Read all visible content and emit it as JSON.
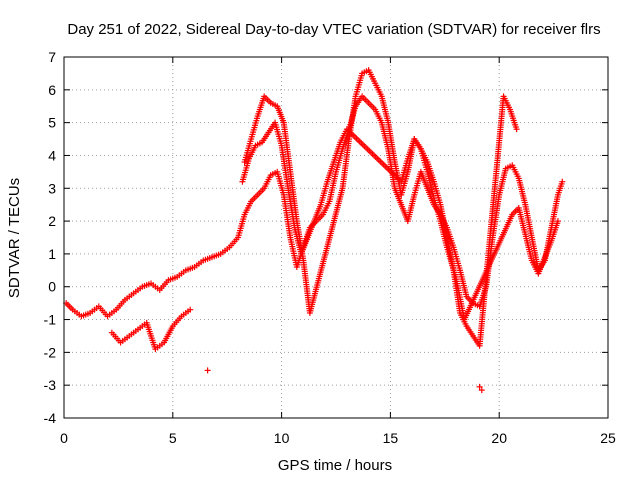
{
  "chart_data": {
    "type": "scatter",
    "title": "Day 251 of 2022, Sidereal Day-to-day VTEC variation (SDTVAR) for receiver flrs",
    "xlabel": "GPS time / hours",
    "ylabel": "SDTVAR / TECUs",
    "xlim": [
      0,
      25
    ],
    "ylim": [
      -4,
      7
    ],
    "xticks": [
      0,
      5,
      10,
      15,
      20,
      25
    ],
    "yticks": [
      -4,
      -3,
      -2,
      -1,
      0,
      1,
      2,
      3,
      4,
      5,
      6,
      7
    ],
    "grid": true,
    "marker": "+",
    "color": "#ff0000",
    "series": [
      {
        "name": "main-track",
        "x": [
          0.1,
          0.4,
          0.8,
          1.2,
          1.6,
          2.0,
          2.4,
          2.8,
          3.2,
          3.6,
          4.0,
          4.4,
          4.8,
          5.2,
          5.6,
          6.0,
          6.4,
          6.8,
          7.2,
          7.6,
          8.0,
          8.3,
          8.6,
          8.9,
          9.2,
          9.5,
          9.8,
          10.1,
          10.4,
          10.7,
          11.0,
          11.3,
          11.6,
          11.9,
          12.2,
          12.5,
          12.8,
          13.1,
          13.4,
          13.7,
          14.0,
          14.3,
          14.6,
          14.9,
          15.2,
          15.5,
          15.8,
          16.1,
          16.4,
          16.7,
          17.0,
          17.3,
          17.6,
          17.9,
          18.2,
          18.5,
          18.8,
          19.1,
          19.4,
          19.7,
          20.0,
          20.3,
          20.6,
          20.9,
          21.2,
          21.5,
          21.8,
          22.1,
          22.4,
          22.7,
          22.9
        ],
        "y": [
          -0.5,
          -0.7,
          -0.9,
          -0.8,
          -0.6,
          -0.9,
          -0.7,
          -0.4,
          -0.2,
          0.0,
          0.1,
          -0.1,
          0.2,
          0.3,
          0.5,
          0.6,
          0.8,
          0.9,
          1.0,
          1.2,
          1.5,
          2.2,
          2.6,
          2.8,
          3.0,
          3.4,
          3.5,
          2.8,
          1.5,
          0.6,
          1.2,
          1.8,
          2.0,
          2.2,
          2.6,
          3.5,
          4.2,
          4.8,
          5.5,
          5.8,
          5.6,
          5.4,
          5.0,
          4.2,
          3.0,
          2.5,
          2.0,
          2.8,
          3.5,
          3.0,
          2.5,
          2.2,
          1.8,
          1.2,
          0.5,
          -0.3,
          -0.5,
          -0.6,
          0.0,
          1.5,
          2.8,
          3.6,
          3.7,
          3.3,
          2.5,
          1.5,
          0.5,
          0.8,
          1.8,
          2.8,
          3.2
        ]
      },
      {
        "name": "upper-track",
        "x": [
          8.3,
          8.6,
          8.9,
          9.2,
          9.5,
          9.8,
          10.1,
          10.4,
          10.7,
          11.0,
          11.3,
          12.8,
          13.1,
          13.4,
          13.7,
          14.0,
          14.3,
          14.6,
          14.9,
          15.2,
          15.5,
          15.8,
          16.1,
          16.4,
          16.7,
          17.0,
          17.3,
          17.6,
          17.9,
          18.2,
          18.5,
          18.8,
          19.1,
          20.2,
          20.5,
          20.8
        ],
        "y": [
          3.8,
          4.5,
          5.2,
          5.8,
          5.6,
          5.5,
          5.0,
          3.5,
          2.0,
          0.8,
          -0.8,
          3.0,
          4.5,
          5.8,
          6.5,
          6.6,
          6.2,
          5.8,
          5.0,
          3.8,
          2.8,
          3.5,
          4.5,
          4.2,
          3.8,
          3.2,
          2.5,
          1.5,
          0.5,
          -0.8,
          -1.2,
          -1.5,
          -1.8,
          5.8,
          5.4,
          4.8
        ]
      },
      {
        "name": "mid-track",
        "x": [
          8.2,
          8.5,
          8.8,
          9.1,
          9.4,
          9.7,
          10.0,
          10.3,
          10.6,
          10.9,
          11.2,
          11.5,
          11.8,
          12.1,
          12.4,
          12.7,
          13.0,
          15.5,
          15.8,
          16.1,
          16.4,
          16.7,
          17.0,
          17.3,
          17.6,
          18.0,
          18.4,
          20.6,
          20.9,
          21.2,
          21.5,
          21.8,
          22.1,
          22.4,
          22.7
        ],
        "y": [
          3.2,
          3.9,
          4.3,
          4.4,
          4.7,
          5.0,
          4.3,
          3.0,
          1.8,
          1.0,
          1.5,
          2.0,
          2.5,
          3.2,
          3.8,
          4.4,
          4.8,
          3.2,
          3.9,
          4.5,
          4.2,
          3.5,
          2.7,
          2.0,
          1.2,
          0.3,
          -1.0,
          2.2,
          2.4,
          1.6,
          0.8,
          0.4,
          0.9,
          1.4,
          2.0
        ]
      },
      {
        "name": "lower-left-track",
        "x": [
          2.2,
          2.6,
          3.0,
          3.4,
          3.8,
          4.2,
          4.6,
          5.0,
          5.4,
          5.8
        ],
        "y": [
          -1.4,
          -1.7,
          -1.5,
          -1.3,
          -1.1,
          -1.9,
          -1.7,
          -1.2,
          -0.9,
          -0.7
        ]
      },
      {
        "name": "isolated-points",
        "x": [
          6.6,
          19.1,
          19.2
        ],
        "y": [
          -2.55,
          -3.05,
          -3.15
        ]
      }
    ]
  }
}
